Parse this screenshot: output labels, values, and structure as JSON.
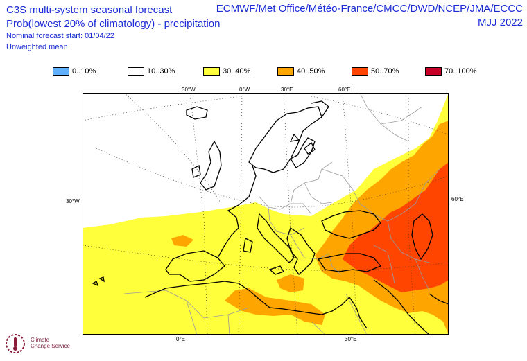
{
  "header": {
    "title_line1": "C3S multi-system seasonal forecast",
    "title_line2": "Prob(lowest 20% of climatology) - precipitation",
    "nominal_start": "Nominal forecast start: 01/04/22",
    "weighting": "Unweighted mean",
    "systems": "ECMWF/Met Office/Météo-France/CMCC/DWD/NCEP/JMA/ECCC",
    "season": "MJJ 2022"
  },
  "legend": {
    "items": [
      {
        "label": "0..10%",
        "color": "#5fb0ff"
      },
      {
        "label": "10..30%",
        "color": "#ffffff"
      },
      {
        "label": "30..40%",
        "color": "#ffff3c"
      },
      {
        "label": "40..50%",
        "color": "#ffa500"
      },
      {
        "label": "50..70%",
        "color": "#ff4500"
      },
      {
        "label": "70..100%",
        "color": "#c80028"
      }
    ]
  },
  "axes": {
    "top_labels": [
      "30°W",
      "0°W",
      "30°E",
      "60°E"
    ],
    "left_label": "30°W",
    "right_label": "60°E",
    "bottom_labels": [
      "0°E",
      "30°E"
    ]
  },
  "logo": {
    "line1": "Climate",
    "line2": "Change Service"
  }
}
